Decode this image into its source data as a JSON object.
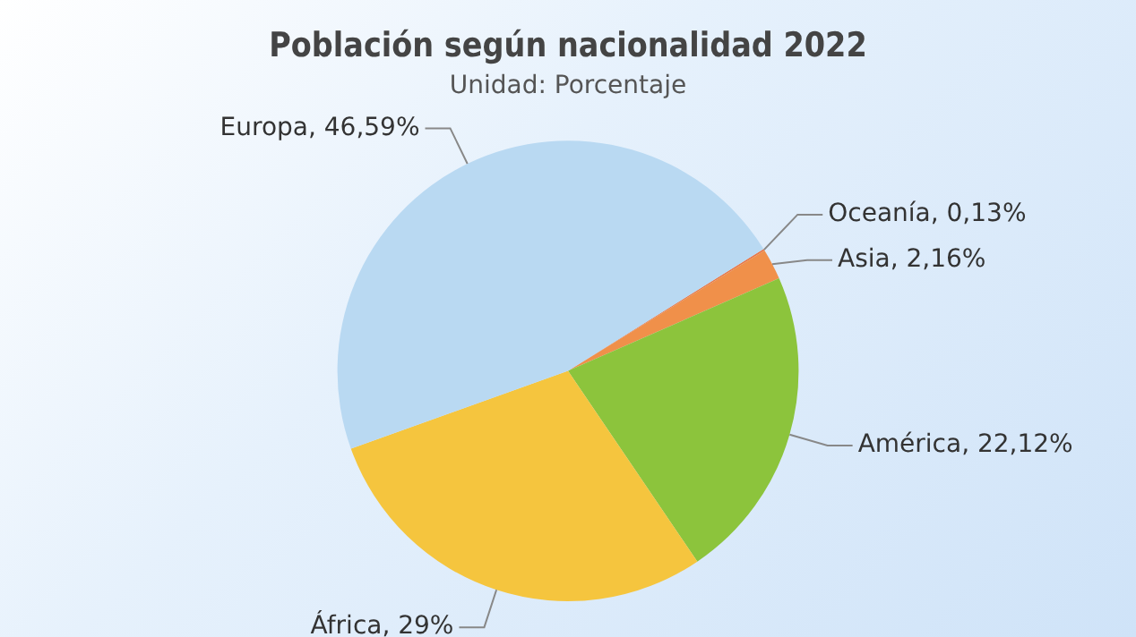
{
  "chart_data": {
    "type": "pie",
    "title": "Población según nacionalidad 2022",
    "subtitle": "Unidad: Porcentaje",
    "categories": [
      "Oceanía",
      "Asia",
      "América",
      "África",
      "Europa"
    ],
    "values": [
      0.13,
      2.16,
      22.12,
      29,
      46.59
    ],
    "colors": [
      "#e8794a",
      "#f0904a",
      "#8cc43c",
      "#f5c53e",
      "#b9d9f2"
    ],
    "value_labels": [
      "0,13%",
      "2,16%",
      "22,12%",
      "29%",
      "46,59%"
    ],
    "legend": false
  }
}
